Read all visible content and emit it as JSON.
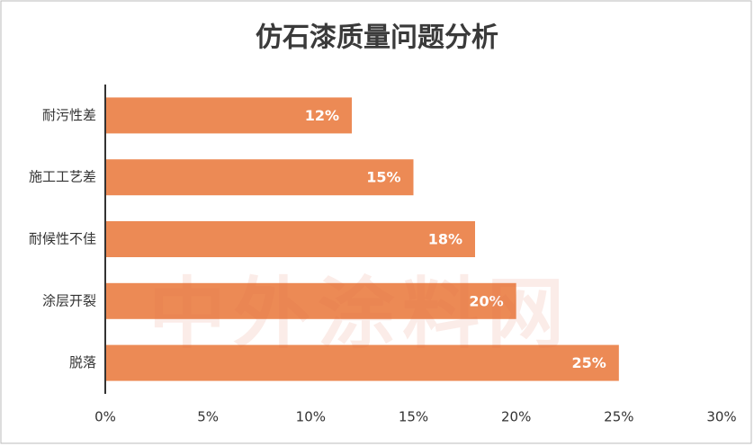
{
  "chart_data": {
    "type": "bar",
    "orientation": "horizontal",
    "title": "仿石漆质量问题分析",
    "watermark": "中外涂料网",
    "categories": [
      "耐污性差",
      "施工工艺差",
      "耐候性不佳",
      "涂层开裂",
      "脱落"
    ],
    "values": [
      12,
      15,
      18,
      20,
      25
    ],
    "value_labels": [
      "12%",
      "15%",
      "18%",
      "20%",
      "25%"
    ],
    "color": "#ec8a55",
    "xlim": [
      0,
      30
    ],
    "xticks": [
      {
        "value": 0,
        "label": "0%"
      },
      {
        "value": 5,
        "label": "5%"
      },
      {
        "value": 10,
        "label": "10%"
      },
      {
        "value": 15,
        "label": "15%"
      },
      {
        "value": 20,
        "label": "20%"
      },
      {
        "value": 25,
        "label": "25%"
      },
      {
        "value": 30,
        "label": "30%"
      }
    ],
    "grid": false
  }
}
